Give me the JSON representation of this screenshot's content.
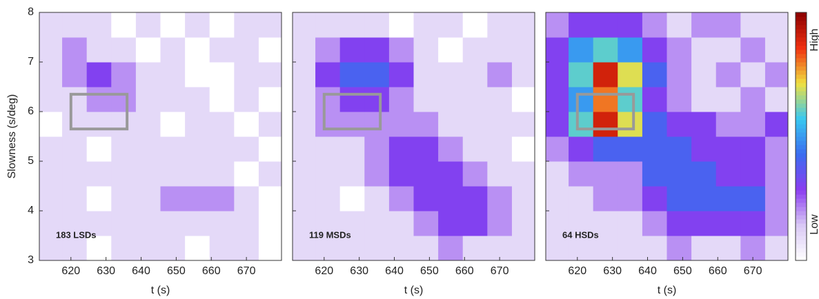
{
  "chart_data": [
    {
      "type": "heatmap",
      "label": "183 LSDs",
      "ylabel": "Slowness (s/deg)",
      "xlabel": "t (s)",
      "x": [
        614,
        621,
        628,
        635,
        642,
        649,
        656,
        663,
        670,
        677
      ],
      "y": [
        3.25,
        3.75,
        4.25,
        4.75,
        5.25,
        5.75,
        6.25,
        6.75,
        7.25,
        7.75
      ],
      "values": [
        [
          1,
          1,
          0,
          1,
          1,
          1,
          0,
          1,
          1,
          0
        ],
        [
          1,
          1,
          1,
          1,
          1,
          1,
          1,
          1,
          1,
          0
        ],
        [
          1,
          1,
          0,
          1,
          1,
          2,
          2,
          2,
          1,
          0
        ],
        [
          1,
          1,
          1,
          1,
          1,
          1,
          1,
          1,
          0,
          1
        ],
        [
          1,
          1,
          0,
          1,
          1,
          1,
          1,
          1,
          1,
          0
        ],
        [
          0,
          1,
          1,
          1,
          1,
          0,
          1,
          1,
          0,
          1
        ],
        [
          1,
          1,
          2,
          2,
          1,
          1,
          1,
          0,
          1,
          0
        ],
        [
          1,
          2,
          3,
          2,
          1,
          1,
          0,
          0,
          1,
          1
        ],
        [
          1,
          2,
          1,
          1,
          0,
          1,
          0,
          1,
          1,
          0
        ],
        [
          1,
          1,
          1,
          0,
          1,
          0,
          1,
          0,
          1,
          1
        ]
      ],
      "xlim": [
        611,
        680
      ],
      "ylim": [
        3,
        8
      ],
      "xticks": [
        620,
        630,
        640,
        650,
        660,
        670
      ],
      "yticks": [
        3,
        4,
        5,
        6,
        7,
        8
      ],
      "box": {
        "x": [
          620,
          636
        ],
        "y": [
          5.65,
          6.35
        ],
        "color": "#999999"
      },
      "zlim": [
        0,
        10
      ],
      "colormap": [
        "#ffffff",
        "#d9c8f5",
        "#8a3cf0",
        "#3a6cf0",
        "#38c8f0",
        "#f0e040",
        "#f03010",
        "#8a0000"
      ]
    },
    {
      "type": "heatmap",
      "label": "119 MSDs",
      "xlabel": "t (s)",
      "x": [
        614,
        621,
        628,
        635,
        642,
        649,
        656,
        663,
        670,
        677
      ],
      "y": [
        3.25,
        3.75,
        4.25,
        4.75,
        5.25,
        5.75,
        6.25,
        6.75,
        7.25,
        7.75
      ],
      "values": [
        [
          1,
          1,
          1,
          1,
          1,
          1,
          2,
          1,
          1,
          1
        ],
        [
          1,
          1,
          1,
          1,
          1,
          2,
          3,
          3,
          2,
          1
        ],
        [
          1,
          1,
          0,
          1,
          2,
          3,
          3,
          3,
          2,
          1
        ],
        [
          1,
          1,
          1,
          2,
          3,
          3,
          3,
          2,
          1,
          1
        ],
        [
          1,
          1,
          1,
          2,
          3,
          3,
          2,
          1,
          1,
          0
        ],
        [
          1,
          2,
          2,
          2,
          2,
          2,
          1,
          1,
          1,
          1
        ],
        [
          1,
          2,
          3,
          3,
          2,
          1,
          1,
          1,
          1,
          0
        ],
        [
          1,
          3,
          4,
          4,
          3,
          1,
          1,
          1,
          2,
          1
        ],
        [
          1,
          2,
          3,
          3,
          2,
          1,
          0,
          1,
          1,
          1
        ],
        [
          1,
          1,
          1,
          1,
          0,
          1,
          1,
          0,
          1,
          1
        ]
      ],
      "xlim": [
        611,
        680
      ],
      "ylim": [
        3,
        8
      ],
      "xticks": [
        620,
        630,
        640,
        650,
        660,
        670
      ],
      "yticks": [
        3,
        4,
        5,
        6,
        7,
        8
      ],
      "box": {
        "x": [
          620,
          636
        ],
        "y": [
          5.65,
          6.35
        ],
        "color": "#999999"
      },
      "zlim": [
        0,
        10
      ],
      "colormap": [
        "#ffffff",
        "#d9c8f5",
        "#8a3cf0",
        "#3a6cf0",
        "#38c8f0",
        "#f0e040",
        "#f03010",
        "#8a0000"
      ]
    },
    {
      "type": "heatmap",
      "label": "64 HSDs",
      "xlabel": "t (s)",
      "x": [
        614,
        621,
        628,
        635,
        642,
        649,
        656,
        663,
        670,
        677
      ],
      "y": [
        3.25,
        3.75,
        4.25,
        4.75,
        5.25,
        5.75,
        6.25,
        6.75,
        7.25,
        7.75
      ],
      "values": [
        [
          1,
          1,
          1,
          1,
          1,
          2,
          1,
          1,
          2,
          1
        ],
        [
          1,
          1,
          1,
          1,
          2,
          3,
          3,
          3,
          3,
          2
        ],
        [
          1,
          1,
          2,
          2,
          3,
          4,
          4,
          4,
          4,
          2
        ],
        [
          1,
          2,
          2,
          2,
          4,
          4,
          4,
          3,
          3,
          2
        ],
        [
          2,
          3,
          4,
          4,
          4,
          4,
          3,
          3,
          3,
          2
        ],
        [
          3,
          6,
          9,
          7,
          4,
          3,
          3,
          2,
          2,
          3
        ],
        [
          3,
          5,
          8,
          6,
          3,
          2,
          1,
          1,
          2,
          1
        ],
        [
          3,
          6,
          9,
          7,
          4,
          2,
          1,
          2,
          1,
          2
        ],
        [
          3,
          5,
          6,
          5,
          3,
          2,
          1,
          1,
          2,
          1
        ],
        [
          2,
          3,
          3,
          3,
          2,
          1,
          2,
          2,
          1,
          1
        ]
      ],
      "xlim": [
        611,
        680
      ],
      "ylim": [
        3,
        8
      ],
      "xticks": [
        620,
        630,
        640,
        650,
        660,
        670
      ],
      "yticks": [
        3,
        4,
        5,
        6,
        7,
        8
      ],
      "box": {
        "x": [
          620,
          636
        ],
        "y": [
          5.65,
          6.35
        ],
        "color": "#999999"
      },
      "zlim": [
        0,
        10
      ],
      "colormap": [
        "#ffffff",
        "#d9c8f5",
        "#8a3cf0",
        "#3a6cf0",
        "#38c8f0",
        "#f0e040",
        "#f03010",
        "#8a0000"
      ],
      "colorbar": {
        "low": "Low",
        "high": "High"
      }
    }
  ]
}
